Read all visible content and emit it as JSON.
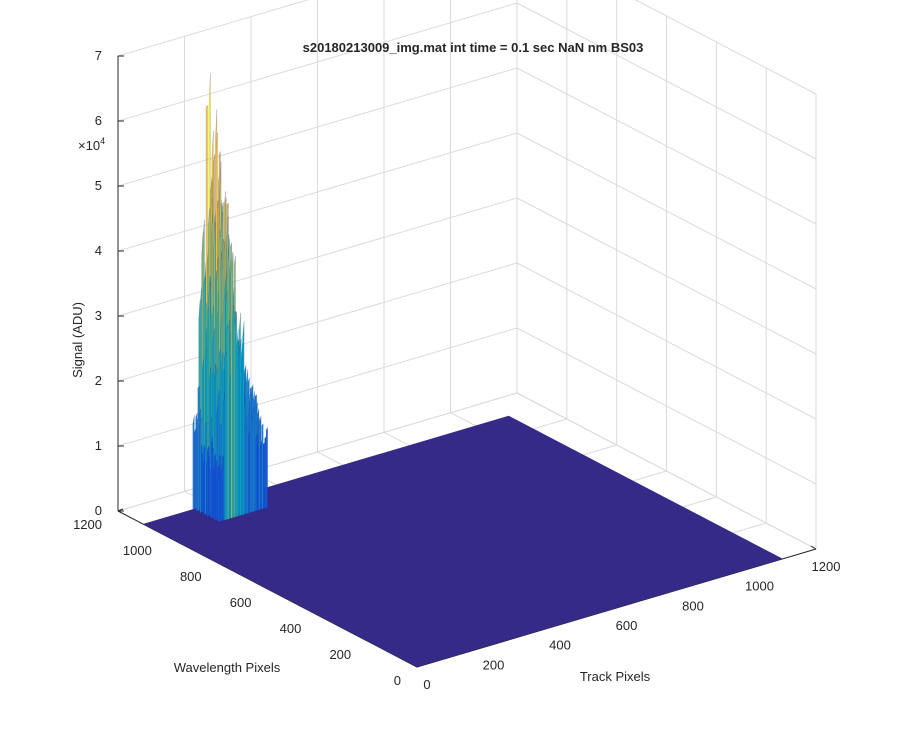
{
  "chart_data": {
    "type": "surface",
    "title": "s20180213009_img.mat int time = 0.1 sec  NaN nm BS03",
    "xlabel": "Track Pixels",
    "ylabel": "Wavelength Pixels",
    "zlabel": "Signal (ADU)",
    "z_multiplier": "×10",
    "z_multiplier_exp": "4",
    "xlim": [
      0,
      1200
    ],
    "ylim": [
      0,
      1200
    ],
    "zlim": [
      0,
      70000
    ],
    "x_ticks": [
      "0",
      "200",
      "400",
      "600",
      "800",
      "1000",
      "1200"
    ],
    "y_ticks": [
      "0",
      "200",
      "400",
      "600",
      "800",
      "1000",
      "1200"
    ],
    "z_ticks": [
      "0",
      "1",
      "2",
      "3",
      "4",
      "5",
      "6",
      "7"
    ],
    "grid": true,
    "colormap": "parula",
    "surface_base": {
      "z": 0,
      "x_range": [
        0,
        1100
      ],
      "y_range": [
        0,
        1100
      ]
    },
    "peak_region": {
      "x_range": [
        150,
        300
      ],
      "y_range": [
        1000,
        1100
      ],
      "max_value": 68000,
      "secondary_level": 30000,
      "edge_level": 20000
    }
  },
  "colors": {
    "base": "#352a87",
    "grid": "#dadada",
    "axis": "#262626",
    "colormap_stops": [
      "#352a87",
      "#0f5cdd",
      "#1481d6",
      "#06a4ca",
      "#2eb7a4",
      "#87bf77",
      "#d1bb59",
      "#fec832",
      "#f9fb0e"
    ]
  }
}
